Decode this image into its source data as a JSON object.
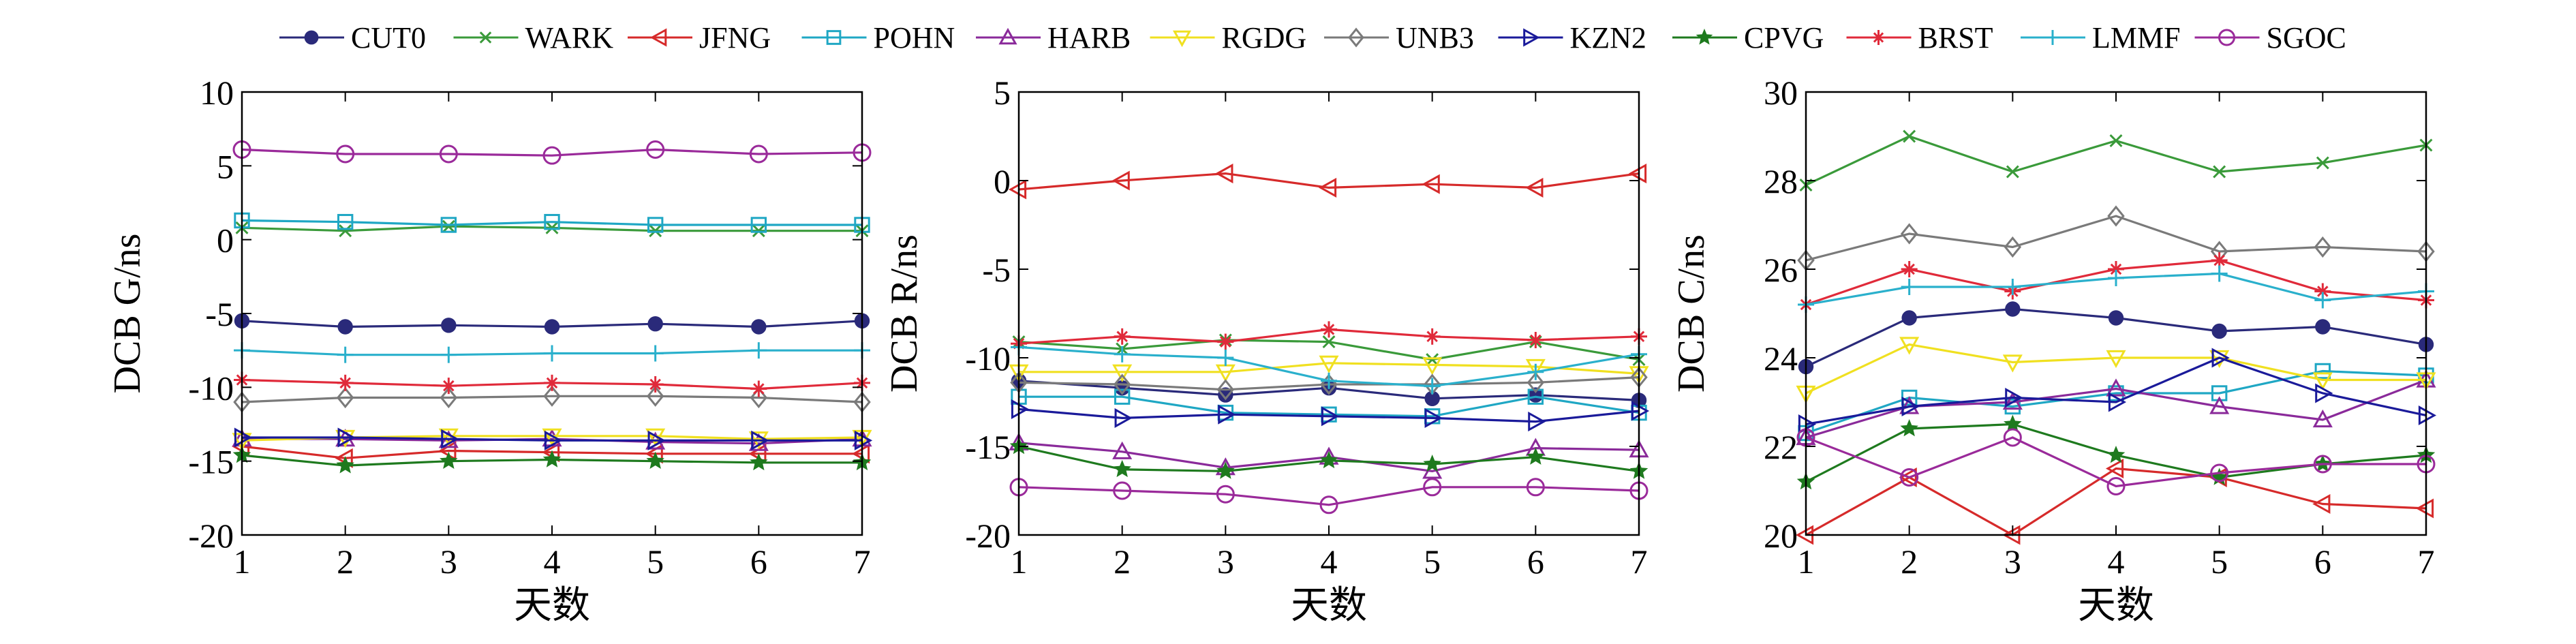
{
  "legend": [
    {
      "name": "CUT0",
      "color": "#2a2a7a",
      "marker": "circle-filled"
    },
    {
      "name": "WARK",
      "color": "#3a9a3a",
      "marker": "x"
    },
    {
      "name": "JFNG",
      "color": "#d62a2a",
      "marker": "triangle-left"
    },
    {
      "name": "POHN",
      "color": "#1fa7c4",
      "marker": "square"
    },
    {
      "name": "HARB",
      "color": "#8a2a9a",
      "marker": "triangle-up"
    },
    {
      "name": "RGDG",
      "color": "#f0e020",
      "marker": "triangle-down"
    },
    {
      "name": "UNB3",
      "color": "#7a7a7a",
      "marker": "diamond"
    },
    {
      "name": "KZN2",
      "color": "#1a1a9a",
      "marker": "triangle-right"
    },
    {
      "name": "CPVG",
      "color": "#1e7a1e",
      "marker": "star"
    },
    {
      "name": "BRST",
      "color": "#e02a3a",
      "marker": "plus-star"
    },
    {
      "name": "LMMF",
      "color": "#2ab0cc",
      "marker": "plus"
    },
    {
      "name": "SGOC",
      "color": "#9a2a9a",
      "marker": "circle"
    }
  ],
  "chart_data": [
    {
      "type": "line",
      "ylabel": "DCB G/ns",
      "xlabel": "天数",
      "x": [
        1,
        2,
        3,
        4,
        5,
        6,
        7
      ],
      "xlim": [
        1,
        7
      ],
      "ylim": [
        -20,
        10
      ],
      "yticks": [
        -20,
        -15,
        -10,
        -5,
        0,
        5,
        10
      ],
      "series": [
        {
          "name": "CUT0",
          "values": [
            -5.5,
            -5.9,
            -5.8,
            -5.9,
            -5.7,
            -5.9,
            -5.5
          ]
        },
        {
          "name": "WARK",
          "values": [
            0.8,
            0.6,
            0.9,
            0.8,
            0.6,
            0.6,
            0.6
          ]
        },
        {
          "name": "JFNG",
          "values": [
            -14.0,
            -14.8,
            -14.3,
            -14.4,
            -14.5,
            -14.5,
            -14.5
          ]
        },
        {
          "name": "POHN",
          "values": [
            1.3,
            1.2,
            1.0,
            1.2,
            1.0,
            1.0,
            1.0
          ]
        },
        {
          "name": "HARB",
          "values": [
            -13.5,
            -13.5,
            -13.6,
            -13.5,
            -13.7,
            -13.8,
            -13.5
          ]
        },
        {
          "name": "RGDG",
          "values": [
            -13.6,
            -13.4,
            -13.3,
            -13.3,
            -13.3,
            -13.5,
            -13.4
          ]
        },
        {
          "name": "UNB3",
          "values": [
            -11.0,
            -10.7,
            -10.7,
            -10.6,
            -10.6,
            -10.7,
            -11.0
          ]
        },
        {
          "name": "KZN2",
          "values": [
            -13.4,
            -13.4,
            -13.5,
            -13.6,
            -13.6,
            -13.6,
            -13.6
          ]
        },
        {
          "name": "CPVG",
          "values": [
            -14.6,
            -15.3,
            -15.0,
            -14.9,
            -15.0,
            -15.1,
            -15.1
          ]
        },
        {
          "name": "BRST",
          "values": [
            -9.5,
            -9.7,
            -9.9,
            -9.7,
            -9.8,
            -10.1,
            -9.7
          ]
        },
        {
          "name": "LMMF",
          "values": [
            -7.5,
            -7.8,
            -7.8,
            -7.7,
            -7.7,
            -7.5,
            -7.5
          ]
        },
        {
          "name": "SGOC",
          "values": [
            6.1,
            5.8,
            5.8,
            5.7,
            6.1,
            5.8,
            5.9
          ]
        }
      ]
    },
    {
      "type": "line",
      "ylabel": "DCB R/ns",
      "xlabel": "天数",
      "x": [
        1,
        2,
        3,
        4,
        5,
        6,
        7
      ],
      "xlim": [
        1,
        7
      ],
      "ylim": [
        -20,
        5
      ],
      "yticks": [
        -20,
        -15,
        -10,
        -5,
        0,
        5
      ],
      "series": [
        {
          "name": "CUT0",
          "values": [
            -11.3,
            -11.7,
            -12.1,
            -11.7,
            -12.3,
            -12.1,
            -12.4
          ]
        },
        {
          "name": "WARK",
          "values": [
            -9.1,
            -9.5,
            -9.0,
            -9.1,
            -10.1,
            -9.1,
            -10.1
          ]
        },
        {
          "name": "JFNG",
          "values": [
            -0.5,
            0.0,
            0.4,
            -0.4,
            -0.2,
            -0.4,
            0.4
          ]
        },
        {
          "name": "POHN",
          "values": [
            -12.2,
            -12.2,
            -13.1,
            -13.2,
            -13.3,
            -12.2,
            -13.1
          ]
        },
        {
          "name": "HARB",
          "values": [
            -14.8,
            -15.3,
            -16.2,
            -15.6,
            -16.4,
            -15.1,
            -15.2
          ]
        },
        {
          "name": "RGDG",
          "values": [
            -10.8,
            -10.8,
            -10.8,
            -10.3,
            -10.4,
            -10.5,
            -10.9
          ]
        },
        {
          "name": "UNB3",
          "values": [
            -11.4,
            -11.5,
            -11.8,
            -11.5,
            -11.5,
            -11.4,
            -11.1
          ]
        },
        {
          "name": "KZN2",
          "values": [
            -12.9,
            -13.4,
            -13.2,
            -13.3,
            -13.4,
            -13.6,
            -13.0
          ]
        },
        {
          "name": "CPVG",
          "values": [
            -15.0,
            -16.3,
            -16.4,
            -15.8,
            -16.0,
            -15.6,
            -16.4
          ]
        },
        {
          "name": "BRST",
          "values": [
            -9.2,
            -8.8,
            -9.1,
            -8.4,
            -8.8,
            -9.0,
            -8.8
          ]
        },
        {
          "name": "LMMF",
          "values": [
            -9.4,
            -9.8,
            -10.0,
            -11.3,
            -11.6,
            -10.8,
            -9.8
          ]
        },
        {
          "name": "SGOC",
          "values": [
            -17.3,
            -17.5,
            -17.7,
            -18.3,
            -17.3,
            -17.3,
            -17.5
          ]
        }
      ]
    },
    {
      "type": "line",
      "ylabel": "DCB C/ns",
      "xlabel": "天数",
      "x": [
        1,
        2,
        3,
        4,
        5,
        6,
        7
      ],
      "xlim": [
        1,
        7
      ],
      "ylim": [
        20,
        30
      ],
      "yticks": [
        20,
        22,
        24,
        26,
        28,
        30
      ],
      "series": [
        {
          "name": "CUT0",
          "values": [
            23.8,
            24.9,
            25.1,
            24.9,
            24.6,
            24.7,
            24.3
          ]
        },
        {
          "name": "WARK",
          "values": [
            27.9,
            29.0,
            28.2,
            28.9,
            28.2,
            28.4,
            28.8
          ]
        },
        {
          "name": "JFNG",
          "values": [
            20.0,
            21.3,
            20.0,
            21.5,
            21.3,
            20.7,
            20.6
          ]
        },
        {
          "name": "POHN",
          "values": [
            22.3,
            23.1,
            22.9,
            23.2,
            23.2,
            23.7,
            23.6
          ]
        },
        {
          "name": "HARB",
          "values": [
            22.2,
            22.9,
            23.0,
            23.3,
            22.9,
            22.6,
            23.5
          ]
        },
        {
          "name": "RGDG",
          "values": [
            23.2,
            24.3,
            23.9,
            24.0,
            24.0,
            23.5,
            23.5
          ]
        },
        {
          "name": "UNB3",
          "values": [
            26.2,
            26.8,
            26.5,
            27.2,
            26.4,
            26.5,
            26.4
          ]
        },
        {
          "name": "KZN2",
          "values": [
            22.5,
            22.9,
            23.1,
            23.0,
            24.0,
            23.2,
            22.7
          ]
        },
        {
          "name": "CPVG",
          "values": [
            21.2,
            22.4,
            22.5,
            21.8,
            21.3,
            21.6,
            21.8
          ]
        },
        {
          "name": "BRST",
          "values": [
            25.2,
            26.0,
            25.5,
            26.0,
            26.2,
            25.5,
            25.3
          ]
        },
        {
          "name": "LMMF",
          "values": [
            25.2,
            25.6,
            25.6,
            25.8,
            25.9,
            25.3,
            25.5
          ]
        },
        {
          "name": "SGOC",
          "values": [
            22.2,
            21.3,
            22.2,
            21.1,
            21.4,
            21.6,
            21.6
          ]
        }
      ]
    }
  ]
}
